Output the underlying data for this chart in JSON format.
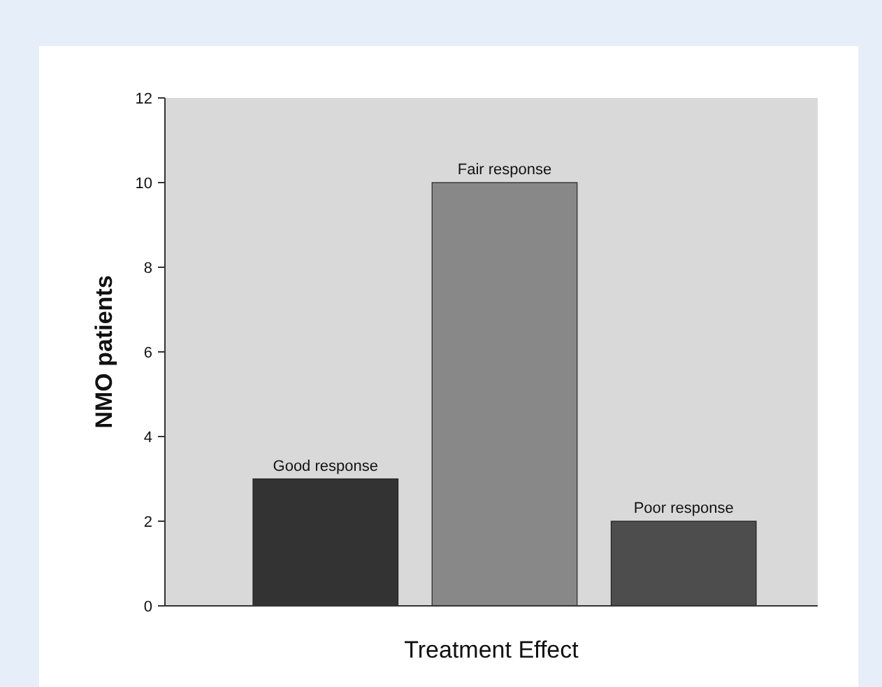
{
  "chart_data": {
    "type": "bar",
    "xlabel": "Treatment Effect",
    "ylabel": "NMO patients",
    "categories": [
      "Good response",
      "Fair response",
      "Poor response"
    ],
    "values": [
      3,
      10,
      2
    ],
    "colors": [
      "#333333",
      "#888888",
      "#4d4d4d"
    ],
    "ylim": [
      0,
      12
    ],
    "yticks": [
      0,
      2,
      4,
      6,
      8,
      10,
      12
    ],
    "grid": false
  }
}
